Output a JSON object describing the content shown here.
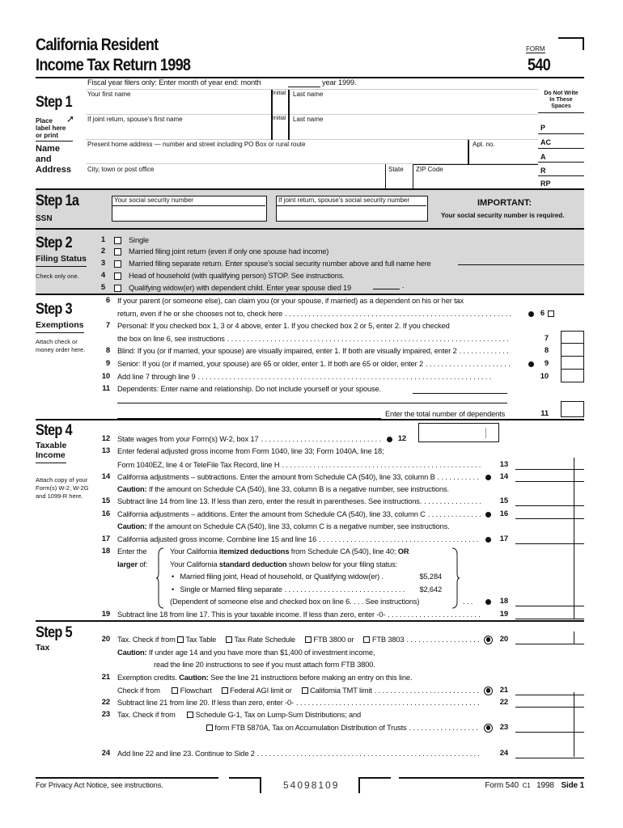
{
  "header": {
    "title_line1": "California Resident",
    "title_line2": "Income Tax Return 1998",
    "form_label": "FORM",
    "form_number": "540",
    "fiscal_year": "Fiscal year filers only: Enter month of year end: month",
    "fiscal_year_suffix": "year 1999."
  },
  "step1": {
    "heading": "Step 1",
    "place_label": [
      "Place",
      "label here",
      "or print"
    ],
    "name_address": [
      "Name",
      "and",
      "Address"
    ],
    "fields": {
      "first_name": "Your first name",
      "initial": "Initial",
      "last_name": "Last name",
      "spouse_first_name": "If joint return, spouse's first name",
      "spouse_initial": "Initial",
      "spouse_last_name": "Last name",
      "address": "Present home address — number and street including PO Box or rural route",
      "apt": "Apt. no.",
      "city": "City, town or post office",
      "state": "State",
      "zip": "ZIP Code"
    },
    "do_not_write": "Do Not Write In These Spaces",
    "codes": [
      "P",
      "AC",
      "A",
      "R",
      "RP"
    ]
  },
  "step1a": {
    "heading": "Step 1a",
    "sub": "SSN",
    "your_ssn": "Your social security number",
    "spouse_ssn": "If joint return, spouse's social security number",
    "important": "IMPORTANT:",
    "important_text": "Your social security number is required."
  },
  "step2": {
    "heading": "Step 2",
    "sub": "Filing Status",
    "note": "Check only one.",
    "options": [
      {
        "num": "1",
        "label": "Single"
      },
      {
        "num": "2",
        "label": "Married filing joint return (even if only one spouse had income)"
      },
      {
        "num": "3",
        "label": "Married filing separate return. Enter spouse's social security number above and full name here"
      },
      {
        "num": "4",
        "label": "Head of household (with qualifying person) STOP. See instructions."
      },
      {
        "num": "5",
        "label": "Qualifying widow(er) with dependent child. Enter year spouse died 19"
      }
    ]
  },
  "step3": {
    "heading": "Step 3",
    "sub": "Exemptions",
    "note": [
      "Attach check or",
      "money order here."
    ],
    "lines": [
      {
        "num": "6",
        "parts": [
          {
            "t": "If your parent (or someone else), can claim you (or your spouse, if married) as a dependent on his or her tax"
          }
        ]
      },
      {
        "parts": [
          {
            "t": "return, even if he or she chooses not to, check here"
          }
        ],
        "leader": true,
        "mark": "bullet",
        "ref": "6",
        "field": "checkbox"
      },
      {
        "num": "7",
        "parts": [
          {
            "t": "Personal: If you checked box 1, 3 or 4 above, enter 1. If you checked box 2 or 5, enter 2. If you checked"
          }
        ]
      },
      {
        "parts": [
          {
            "t": "the box on line 6, see instructions"
          }
        ],
        "leader": true,
        "ref": "7",
        "field": "box"
      },
      {
        "num": "8",
        "parts": [
          {
            "t": "Blind: If you (or if married, your spouse) are visually impaired, enter 1. If both are visually impaired, enter 2"
          }
        ],
        "leader": true,
        "ref": "8",
        "field": "box"
      },
      {
        "num": "9",
        "parts": [
          {
            "t": "Senior: If you (or if married, your spouse) are 65 or older, enter 1. If both are 65 or older, enter 2"
          }
        ],
        "leader": true,
        "mark": "bullet",
        "ref": "9",
        "field": "box"
      },
      {
        "num": "10",
        "parts": [
          {
            "t": "Add line 7 through line 9"
          }
        ],
        "leader": true,
        "ref": "10",
        "field": "box"
      },
      {
        "num": "11",
        "parts": [
          {
            "t": "Dependents: Enter name and relationship. Do not include yourself or your spouse."
          }
        ],
        "field": "underline"
      },
      {
        "parts": [
          {
            "t": "Enter the total number of dependents"
          }
        ],
        "ref": "11",
        "field": "box",
        "align": "right"
      }
    ]
  },
  "step4": {
    "heading": "Step 4",
    "sub": [
      "Taxable",
      "Income"
    ],
    "note": [
      "Attach copy of your",
      "Form(s) W-2, W-2G",
      "and 1099-R here."
    ],
    "lines": [
      {
        "num": "12",
        "parts": [
          {
            "t": "State wages from your Form(s) W-2, box 17"
          }
        ],
        "leader": true,
        "mark": "bullet",
        "ref": "12",
        "field": "w2box"
      },
      {
        "num": "13",
        "parts": [
          {
            "t": "Enter federal adjusted gross income from Form 1040, line 33; Form 1040A, line 18;"
          }
        ]
      },
      {
        "parts": [
          {
            "t": "Form 1040EZ, line 4 or TeleFile Tax Record, line H"
          }
        ],
        "leader": true,
        "ref": "13",
        "field": "amount"
      },
      {
        "num": "14",
        "parts": [
          {
            "t": "California adjustments – subtractions. Enter the amount from Schedule CA (540), line 33, column B"
          }
        ],
        "leader": true,
        "mark": "bullet",
        "ref": "14",
        "field": "amount"
      },
      {
        "parts": [
          {
            "t": "Caution:",
            "b": true
          },
          {
            "t": " If the amount on Schedule CA (540), line 33, column B is a negative number, see instructions."
          }
        ]
      },
      {
        "num": "15",
        "parts": [
          {
            "t": "Subtract line 14 from line 13. If less than zero, enter the result in parentheses. See instructions."
          }
        ],
        "leader": true,
        "ref": "15",
        "field": "amount"
      },
      {
        "num": "16",
        "parts": [
          {
            "t": "California adjustments – additions. Enter the amount from Schedule CA (540), line 33, column C"
          }
        ],
        "leader": true,
        "mark": "bullet",
        "ref": "16",
        "field": "amount"
      },
      {
        "parts": [
          {
            "t": "Caution:",
            "b": true
          },
          {
            "t": " If the amount on Schedule CA (540), line 33, column C is a negative number, see instructions."
          }
        ]
      },
      {
        "num": "17",
        "parts": [
          {
            "t": "California adjusted gross income. Combine line 15 and line 16"
          }
        ],
        "leader": true,
        "mark": "bullet",
        "ref": "17",
        "field": "amount"
      },
      {
        "num": "18",
        "label": [
          {
            "t": "Enter the"
          }
        ],
        "parts": [
          {
            "t": "Your California "
          },
          {
            "t": "itemized deductions",
            "b": true
          },
          {
            "t": " from Schedule CA (540), line 40; "
          },
          {
            "t": "OR",
            "b": true
          }
        ]
      },
      {
        "label": [
          {
            "t": "larger",
            "b": true
          },
          {
            "t": " of:"
          }
        ],
        "parts": [
          {
            "t": "Your California "
          },
          {
            "t": "standard deduction",
            "b": true
          },
          {
            "t": " shown below for your filing status:"
          }
        ]
      },
      {
        "parts": [
          {
            "t": "•   Married filing joint, Head of household, or Qualifying widow(er) ."
          }
        ],
        "amount": "$5,284"
      },
      {
        "parts": [
          {
            "t": "•   Single or Married filing separate"
          }
        ],
        "leader": true,
        "amount": "$2,642"
      },
      {
        "parts": [
          {
            "t": "(Dependent of someone else and checked box on line 6. . . . See instructions)"
          }
        ],
        "mark": "bullet",
        "ref": "18",
        "field": "amount",
        "trail": ". . ."
      },
      {
        "num": "19",
        "parts": [
          {
            "t": "Subtract line 18 from line 17. This is your taxable income. If less than zero, enter -0-"
          }
        ],
        "leader": true,
        "ref": "19",
        "field": "amount"
      }
    ]
  },
  "step5": {
    "heading": "Step 5",
    "sub": "Tax",
    "lines": [
      {
        "num": "20",
        "parts": [
          {
            "t": "Tax. Check if from "
          },
          {
            "cb": true
          },
          {
            "t": " Tax Table"
          },
          {
            "cb": true,
            "gap": true
          },
          {
            "t": " Tax Rate Schedule"
          },
          {
            "cb": true,
            "gap": true
          },
          {
            "t": " FTB 3800 or"
          },
          {
            "cb": true,
            "gap": true
          },
          {
            "t": " FTB 3803"
          }
        ],
        "leader": true,
        "mark": "radio",
        "ref": "20",
        "field": "amount"
      },
      {
        "parts": [
          {
            "t": "Caution:",
            "b": true
          },
          {
            "t": " If under age 14 and you have more than $1,400 of investment income,"
          }
        ]
      },
      {
        "parts": [
          {
            "t": "read the line 20 instructions to see if you must attach form FTB 3800."
          }
        ]
      },
      {
        "num": "21",
        "parts": [
          {
            "t": "Exemption credits. "
          },
          {
            "t": "Caution:",
            "b": true
          },
          {
            "t": " See the line 21 instructions before making an entry on this line."
          }
        ]
      },
      {
        "parts": [
          {
            "t": "Check if from "
          },
          {
            "cb": true,
            "gap": true
          },
          {
            "t": " Flowchart"
          },
          {
            "cb": true,
            "gap": true
          },
          {
            "t": " Federal AGI limit or"
          },
          {
            "cb": true,
            "gap": true
          },
          {
            "t": " California TMT limit"
          }
        ],
        "leader": true,
        "mark": "radio",
        "ref": "21",
        "field": "amount"
      },
      {
        "num": "22",
        "parts": [
          {
            "t": "Subtract line 21 from line 20. If less than zero, enter -0-"
          }
        ],
        "leader": true,
        "ref": "22",
        "field": "amount"
      },
      {
        "num": "23",
        "parts": [
          {
            "t": "Tax. Check if from "
          },
          {
            "cb": true,
            "gap": true
          },
          {
            "t": " Schedule G-1, Tax on Lump-Sum Distributions; and"
          }
        ]
      },
      {
        "parts": [
          {
            "cb": true
          },
          {
            "t": " form FTB 5870A, Tax on Accumulation Distribution of Trusts"
          }
        ],
        "leader": true,
        "mark": "radio",
        "ref": "23",
        "field": "amount"
      },
      {
        "num": "24",
        "parts": [
          {
            "t": "Add line 22 and line 23. Continue to Side 2"
          }
        ],
        "leader": true,
        "ref": "24",
        "field": "amount"
      }
    ]
  },
  "footer": {
    "privacy": "For Privacy Act Notice, see instructions.",
    "code": "54098109",
    "form_id": "Form 540",
    "form_suffix": "C1",
    "year": "1998",
    "side": "Side 1"
  }
}
